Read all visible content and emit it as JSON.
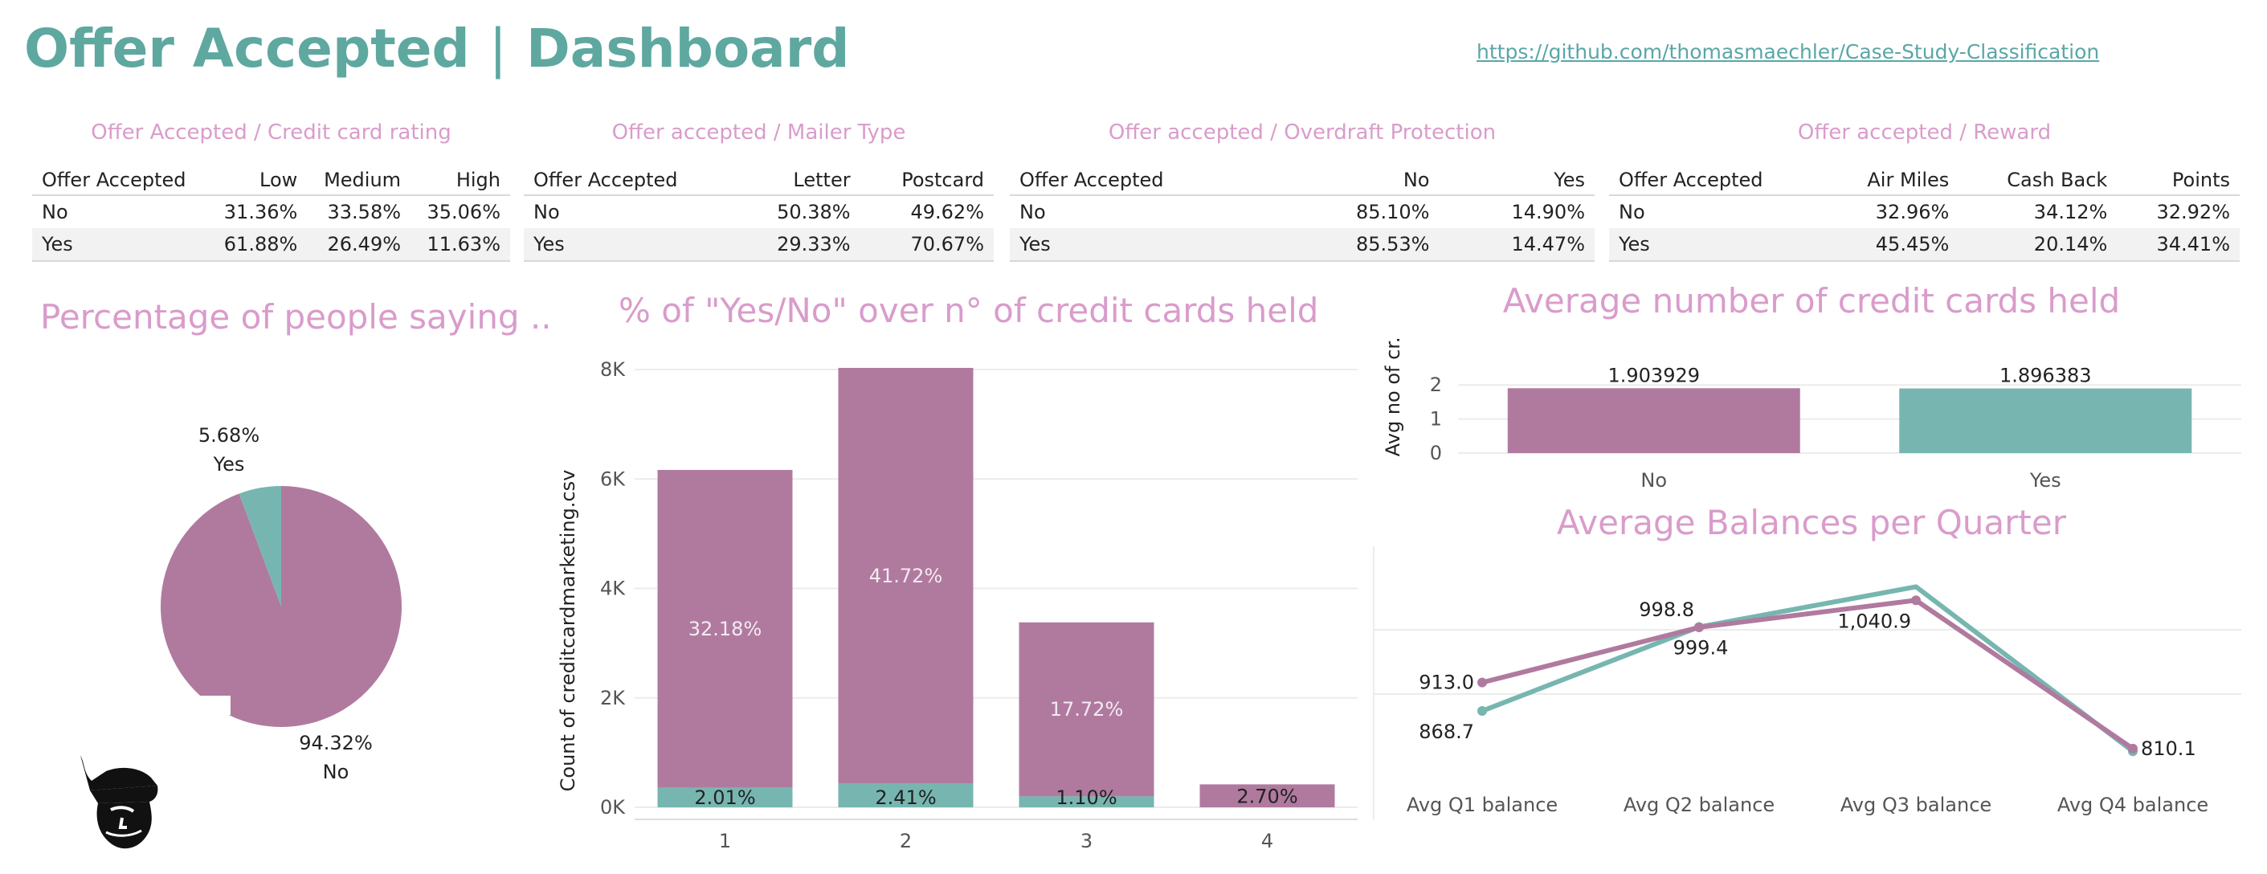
{
  "header": {
    "title_left": "Offer Accepted",
    "title_sep": "|",
    "title_right": "Dashboard",
    "link": "https://github.com/thomasmaechler/Case-Study-Classification"
  },
  "tables": [
    {
      "title": "Offer Accepted / Credit card rating",
      "columns": [
        "Offer Accepted",
        "Low",
        "Medium",
        "High"
      ],
      "rows": [
        [
          "No",
          "31.36%",
          "33.58%",
          "35.06%"
        ],
        [
          "Yes",
          "61.88%",
          "26.49%",
          "11.63%"
        ]
      ]
    },
    {
      "title": "Offer accepted / Mailer Type",
      "columns": [
        "Offer Accepted",
        "Letter",
        "Postcard"
      ],
      "rows": [
        [
          "No",
          "50.38%",
          "49.62%"
        ],
        [
          "Yes",
          "29.33%",
          "70.67%"
        ]
      ]
    },
    {
      "title": "Offer accepted / Overdraft Protection",
      "columns": [
        "Offer Accepted",
        "No",
        "Yes"
      ],
      "rows": [
        [
          "No",
          "85.10%",
          "14.90%"
        ],
        [
          "Yes",
          "85.53%",
          "14.47%"
        ]
      ]
    },
    {
      "title": "Offer accepted / Reward",
      "columns": [
        "Offer Accepted",
        "Air Miles",
        "Cash Back",
        "Points"
      ],
      "rows": [
        [
          "No",
          "32.96%",
          "34.12%",
          "32.92%"
        ],
        [
          "Yes",
          "45.45%",
          "20.14%",
          "34.41%"
        ]
      ]
    }
  ],
  "colors": {
    "no": "#b07a9f",
    "yes": "#77b6b0",
    "title_pink": "#d99ccb",
    "title_teal": "#5ea8a0"
  },
  "chart_data": [
    {
      "type": "pie",
      "title": "Percentage of people saying ..",
      "labels": [
        "No",
        "Yes"
      ],
      "values": [
        94.32,
        5.68
      ],
      "value_labels": [
        "94.32%",
        "5.68%"
      ]
    },
    {
      "type": "bar",
      "title": "% of \"Yes/No\" over n° of credit cards held",
      "ylabel": "Count of creditcardmarketing.csv",
      "categories": [
        "1",
        "2",
        "3",
        "4"
      ],
      "yticks": [
        "0K",
        "2K",
        "4K",
        "6K",
        "8K"
      ],
      "ylim": [
        0,
        8000
      ],
      "series": [
        {
          "name": "No",
          "values": [
            5810,
            7600,
            3180,
            420
          ],
          "labels": [
            "32.18%",
            "41.72%",
            "17.72%",
            "2.70%"
          ]
        },
        {
          "name": "Yes",
          "values": [
            355,
            430,
            200,
            0
          ],
          "labels": [
            "2.01%",
            "2.41%",
            "1.10%",
            ""
          ]
        }
      ]
    },
    {
      "type": "bar",
      "title": "Average number of credit cards held",
      "ylabel": "Avg no of cr..",
      "categories": [
        "No",
        "Yes"
      ],
      "yticks": [
        "0",
        "1",
        "2"
      ],
      "ylim": [
        0,
        2.5
      ],
      "values": [
        1.903929,
        1.896383
      ],
      "value_labels": [
        "1.903929",
        "1.896383"
      ]
    },
    {
      "type": "line",
      "title": "Average Balances per Quarter",
      "categories": [
        "Avg Q1 balance",
        "Avg Q2 balance",
        "Avg Q3 balance",
        "Avg Q4 balance"
      ],
      "ylim": [
        750,
        1100
      ],
      "series": [
        {
          "name": "No",
          "values": [
            913.0,
            998.8,
            1040.9,
            810.1
          ]
        },
        {
          "name": "Yes",
          "values": [
            868.7,
            999.4,
            1062,
            806
          ]
        }
      ],
      "point_labels": [
        "913.0",
        "868.7",
        "998.8",
        "999.4",
        "1,040.9",
        "810.1"
      ]
    }
  ]
}
